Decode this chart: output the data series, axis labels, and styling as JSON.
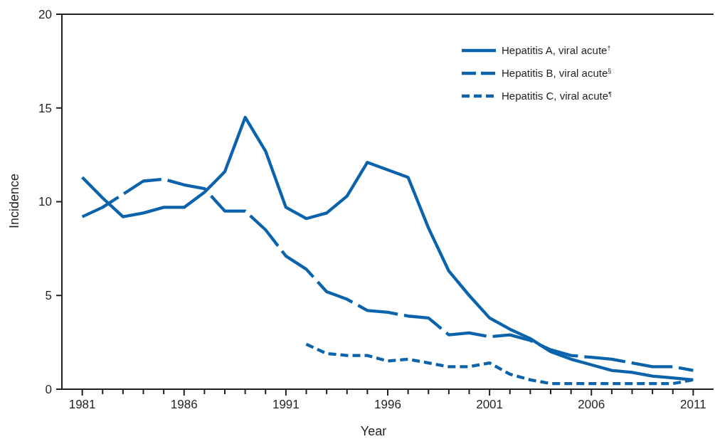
{
  "chart_data": {
    "type": "line",
    "xlabel": "Year",
    "ylabel": "Incidence",
    "x": [
      1981,
      1982,
      1983,
      1984,
      1985,
      1986,
      1987,
      1988,
      1989,
      1990,
      1991,
      1992,
      1993,
      1994,
      1995,
      1996,
      1997,
      1998,
      1999,
      2000,
      2001,
      2002,
      2003,
      2004,
      2005,
      2006,
      2007,
      2008,
      2009,
      2010,
      2011
    ],
    "xlim": [
      1980,
      2012
    ],
    "xticks": [
      1981,
      {
        "value": 1982,
        "label": null
      },
      {
        "value": 1983,
        "label": null
      },
      {
        "value": 1984,
        "label": null
      },
      {
        "value": 1985,
        "label": null
      },
      1986,
      {
        "value": 1987,
        "label": null
      },
      {
        "value": 1988,
        "label": null
      },
      {
        "value": 1989,
        "label": null
      },
      {
        "value": 1990,
        "label": null
      },
      1991,
      {
        "value": 1992,
        "label": null
      },
      {
        "value": 1993,
        "label": null
      },
      {
        "value": 1994,
        "label": null
      },
      {
        "value": 1995,
        "label": null
      },
      1996,
      {
        "value": 1997,
        "label": null
      },
      {
        "value": 1998,
        "label": null
      },
      {
        "value": 1999,
        "label": null
      },
      {
        "value": 2000,
        "label": null
      },
      2001,
      {
        "value": 2002,
        "label": null
      },
      {
        "value": 2003,
        "label": null
      },
      {
        "value": 2004,
        "label": null
      },
      {
        "value": 2005,
        "label": null
      },
      2006,
      {
        "value": 2007,
        "label": null
      },
      {
        "value": 2008,
        "label": null
      },
      {
        "value": 2009,
        "label": null
      },
      {
        "value": 2010,
        "label": null
      },
      2011
    ],
    "ylim": [
      0,
      20
    ],
    "yticks": [
      0,
      5,
      10,
      15,
      20
    ],
    "series": [
      {
        "name": "Hepatitis A, viral acute$^{†}$",
        "color": "#0a63ab",
        "line_style": "solid",
        "values": [
          11.3,
          10.2,
          9.2,
          9.4,
          9.7,
          9.7,
          10.5,
          11.6,
          14.5,
          12.7,
          9.7,
          9.1,
          9.4,
          10.3,
          12.1,
          11.7,
          11.3,
          8.6,
          6.3,
          5.0,
          3.8,
          3.2,
          2.7,
          2.0,
          1.6,
          1.3,
          1.0,
          0.9,
          0.7,
          0.6,
          0.5
        ]
      },
      {
        "name": "Hepatitis B, viral acute$^{§}$",
        "color": "#0a63ab",
        "line_style": "dashed",
        "values": [
          9.2,
          9.7,
          10.4,
          11.1,
          11.2,
          10.9,
          10.7,
          9.5,
          9.5,
          8.5,
          7.1,
          6.4,
          5.2,
          4.8,
          4.2,
          4.1,
          3.9,
          3.8,
          2.9,
          3.0,
          2.8,
          2.9,
          2.6,
          2.1,
          1.8,
          1.7,
          1.6,
          1.4,
          1.2,
          1.2,
          1.0
        ]
      },
      {
        "name": "Hepatitis C, viral acute$^{¶}$",
        "color": "#0a63ab",
        "line_style": "dotted",
        "values": [
          null,
          null,
          null,
          null,
          null,
          null,
          null,
          null,
          null,
          null,
          null,
          2.4,
          1.9,
          1.8,
          1.8,
          1.5,
          1.6,
          1.4,
          1.2,
          1.2,
          1.4,
          0.8,
          0.5,
          0.3,
          0.3,
          0.3,
          0.3,
          0.3,
          0.3,
          0.3,
          0.5
        ]
      }
    ],
    "legend": "top right"
  }
}
